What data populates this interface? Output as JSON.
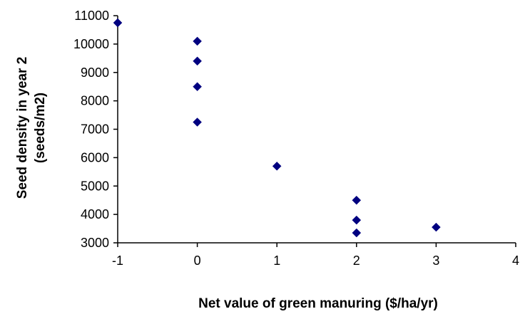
{
  "chart_data": {
    "type": "scatter",
    "title": "",
    "xlabel": "Net value of green manuring ($/ha/yr)",
    "ylabel": "Seed density in year 2",
    "ylabel_unit": "(seeds/m2)",
    "xlim": [
      -1,
      4
    ],
    "ylim": [
      3000,
      11000
    ],
    "x_ticks": [
      "-1",
      "0",
      "1",
      "2",
      "3",
      "4"
    ],
    "y_ticks": [
      "3000",
      "4000",
      "5000",
      "6000",
      "7000",
      "8000",
      "9000",
      "10000",
      "11000"
    ],
    "grid": false,
    "legend": "none",
    "marker": "diamond",
    "marker_color": "#000080",
    "points": [
      {
        "x": -1,
        "y": 10750
      },
      {
        "x": 0,
        "y": 10100
      },
      {
        "x": 0,
        "y": 9400
      },
      {
        "x": 0,
        "y": 8500
      },
      {
        "x": 0,
        "y": 7250
      },
      {
        "x": 1,
        "y": 5700
      },
      {
        "x": 2,
        "y": 4500
      },
      {
        "x": 2,
        "y": 3800
      },
      {
        "x": 2,
        "y": 3350
      },
      {
        "x": 3,
        "y": 3550
      }
    ]
  }
}
